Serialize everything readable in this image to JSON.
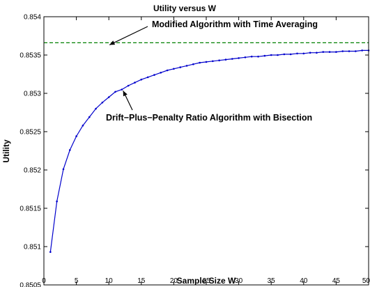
{
  "chart_data": {
    "type": "line",
    "title": "Utility versus W",
    "xlabel": "Sample Size W",
    "ylabel": "Utility",
    "xlim": [
      0,
      50
    ],
    "ylim": [
      0.8505,
      0.854
    ],
    "x_ticks": [
      0,
      5,
      10,
      15,
      20,
      25,
      30,
      35,
      40,
      45,
      50
    ],
    "y_ticks": [
      0.8505,
      0.851,
      0.8515,
      0.852,
      0.8525,
      0.853,
      0.8535,
      0.854
    ],
    "y_tick_labels": [
      "0.8505",
      "0.851",
      "0.8515",
      "0.852",
      "0.8525",
      "0.853",
      "0.8535",
      "0.854"
    ],
    "grid": false,
    "series": [
      {
        "name": "Drift-Plus-Penalty Ratio Algorithm with Bisection",
        "color": "#0000cc",
        "style": "solid-with-point-markers",
        "x": [
          1,
          2,
          3,
          4,
          5,
          6,
          7,
          8,
          9,
          10,
          11,
          12,
          13,
          14,
          15,
          16,
          17,
          18,
          19,
          20,
          21,
          22,
          23,
          24,
          25,
          26,
          27,
          28,
          29,
          30,
          31,
          32,
          33,
          34,
          35,
          36,
          37,
          38,
          39,
          40,
          41,
          42,
          43,
          44,
          45,
          46,
          47,
          48,
          49,
          50
        ],
        "values": [
          0.85093,
          0.85159,
          0.85201,
          0.85226,
          0.85244,
          0.85258,
          0.85269,
          0.8528,
          0.85288,
          0.85295,
          0.85302,
          0.85305,
          0.8531,
          0.85314,
          0.85318,
          0.85321,
          0.85324,
          0.85327,
          0.8533,
          0.85332,
          0.85334,
          0.85336,
          0.85338,
          0.8534,
          0.85341,
          0.85342,
          0.85343,
          0.85344,
          0.85345,
          0.85346,
          0.85347,
          0.85348,
          0.85348,
          0.85349,
          0.8535,
          0.8535,
          0.85351,
          0.85351,
          0.85352,
          0.85352,
          0.85353,
          0.85353,
          0.85354,
          0.85354,
          0.85354,
          0.85355,
          0.85355,
          0.85355,
          0.85356,
          0.85356
        ]
      },
      {
        "name": "Modified Algorithm with Time Averaging",
        "color": "#008000",
        "style": "dashed",
        "x": [
          0,
          50
        ],
        "values": [
          0.85366,
          0.85366
        ]
      }
    ],
    "annotations": [
      {
        "text": "Modified Algorithm with Time Averaging",
        "arrow_to": [
          10.1,
          0.85366
        ]
      },
      {
        "text": "Drift−Plus−Penalty Ratio Algorithm with Bisection",
        "arrow_to": [
          12.2,
          0.85307
        ]
      }
    ]
  }
}
